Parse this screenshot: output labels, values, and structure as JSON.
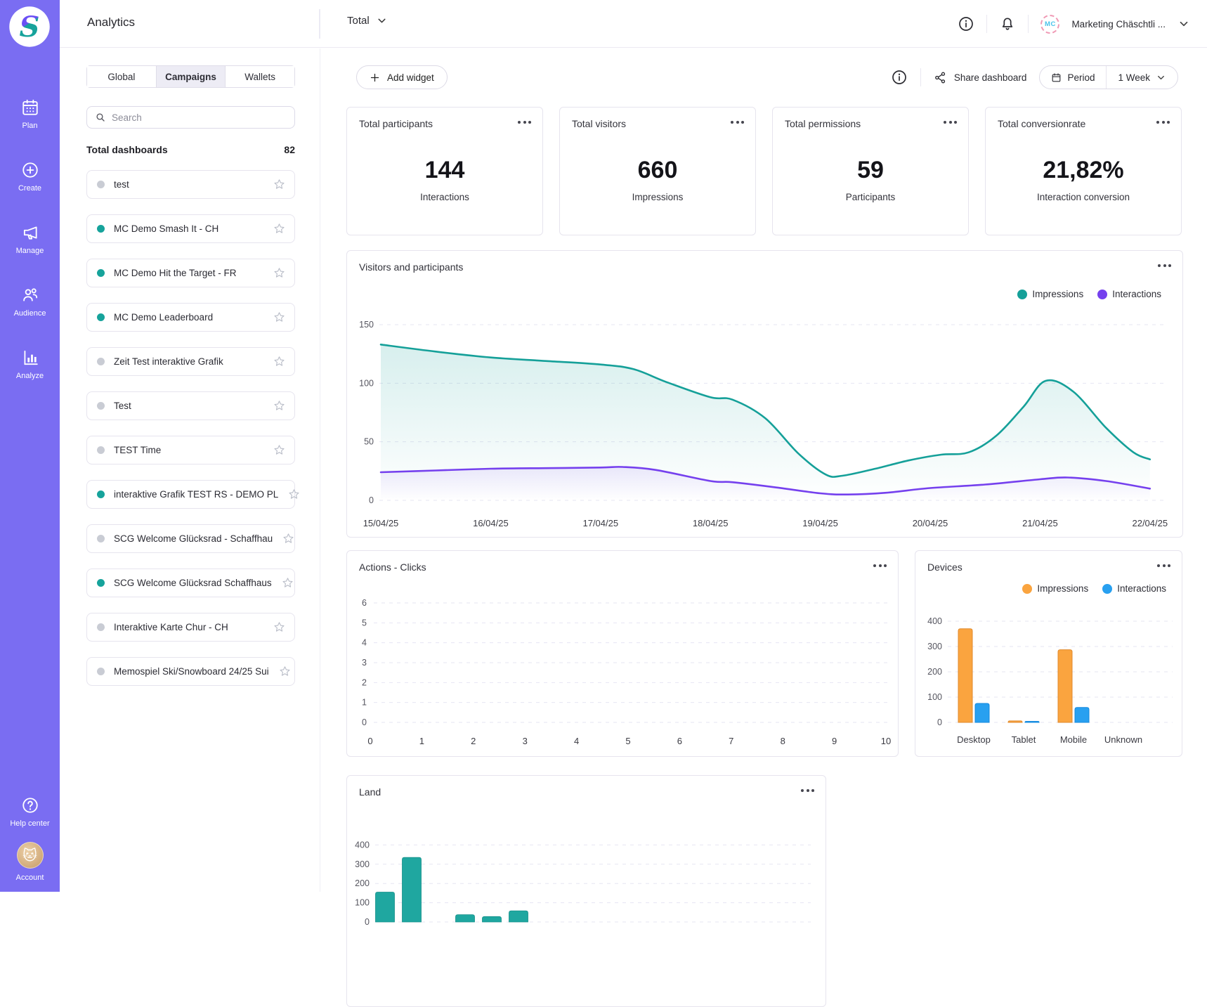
{
  "colors": {
    "sidebar": "#7a6df2",
    "teal": "#15a099",
    "purple": "#7540ee",
    "orange": "#faa43f",
    "blue": "#28a0f0",
    "dot_gray": "#c9ccd4",
    "dot_teal": "#16a39b"
  },
  "header": {
    "title": "Analytics",
    "scope_dropdown": "Total",
    "account_name": "Marketing Chäschtli ...",
    "avatar_initials": "MC"
  },
  "sidebar": {
    "items": [
      {
        "label": "Plan",
        "icon": "calendar-icon"
      },
      {
        "label": "Create",
        "icon": "plus-circle-icon"
      },
      {
        "label": "Manage",
        "icon": "megaphone-icon"
      },
      {
        "label": "Audience",
        "icon": "people-icon"
      },
      {
        "label": "Analyze",
        "icon": "bar-chart-icon"
      }
    ],
    "bottom": [
      {
        "label": "Help center",
        "icon": "question-circle-icon"
      },
      {
        "label": "Account",
        "icon": "avatar-cat"
      }
    ]
  },
  "panel": {
    "tabs": [
      "Global",
      "Campaigns",
      "Wallets"
    ],
    "active_tab": "Campaigns",
    "search_placeholder": "Search",
    "total_label": "Total dashboards",
    "total_count": "82",
    "dashboards": [
      {
        "name": "test",
        "dot": "gray"
      },
      {
        "name": "MC Demo Smash It - CH",
        "dot": "teal"
      },
      {
        "name": "MC Demo Hit the Target - FR",
        "dot": "teal"
      },
      {
        "name": "MC Demo Leaderboard",
        "dot": "teal"
      },
      {
        "name": "Zeit Test interaktive Grafik",
        "dot": "gray"
      },
      {
        "name": "Test",
        "dot": "gray"
      },
      {
        "name": "TEST Time",
        "dot": "gray"
      },
      {
        "name": "interaktive Grafik TEST RS - DEMO PL",
        "dot": "teal"
      },
      {
        "name": "SCG Welcome Glücksrad - Schaffhau",
        "dot": "gray"
      },
      {
        "name": "SCG Welcome Glücksrad Schaffhaus",
        "dot": "teal"
      },
      {
        "name": "Interaktive Karte Chur - CH",
        "dot": "gray"
      },
      {
        "name": "Memospiel Ski/Snowboard 24/25 Sui",
        "dot": "gray"
      }
    ]
  },
  "toolbar": {
    "add_widget": "Add widget",
    "share": "Share dashboard",
    "period_label": "Period",
    "period_value": "1 Week"
  },
  "kpis": [
    {
      "title": "Total participants",
      "value": "144",
      "label": "Interactions"
    },
    {
      "title": "Total visitors",
      "value": "660",
      "label": "Impressions"
    },
    {
      "title": "Total permissions",
      "value": "59",
      "label": "Participants"
    },
    {
      "title": "Total conversionrate",
      "value": "21,82%",
      "label": "Interaction conversion"
    }
  ],
  "chart_data": [
    {
      "id": "visitors",
      "type": "area",
      "title": "Visitors and participants",
      "legend_position": "top-right",
      "grid": "horizontal-dashed",
      "x_labels": [
        "15/04/25",
        "16/04/25",
        "17/04/25",
        "18/04/25",
        "19/04/25",
        "20/04/25",
        "21/04/25",
        "22/04/25"
      ],
      "ylim": [
        0,
        150
      ],
      "yticks": [
        0,
        50,
        100,
        150
      ],
      "series": [
        {
          "name": "Impressions",
          "color": "#15a099",
          "points": [
            [
              0,
              133
            ],
            [
              0.5,
              127
            ],
            [
              1,
              122
            ],
            [
              1.5,
              119
            ],
            [
              2,
              116
            ],
            [
              2.3,
              112
            ],
            [
              2.6,
              101
            ],
            [
              3,
              88
            ],
            [
              3.2,
              86
            ],
            [
              3.5,
              70
            ],
            [
              3.8,
              40
            ],
            [
              4.05,
              22
            ],
            [
              4.2,
              21
            ],
            [
              4.5,
              27
            ],
            [
              4.8,
              34
            ],
            [
              5.1,
              39
            ],
            [
              5.35,
              41
            ],
            [
              5.6,
              55
            ],
            [
              5.85,
              80
            ],
            [
              6.05,
              102
            ],
            [
              6.3,
              93
            ],
            [
              6.6,
              62
            ],
            [
              6.85,
              41
            ],
            [
              7,
              35
            ]
          ],
          "values_at_dates": [
            133,
            122,
            116,
            88,
            22,
            39,
            100,
            35
          ]
        },
        {
          "name": "Interactions",
          "color": "#7540ee",
          "points": [
            [
              0,
              24
            ],
            [
              0.5,
              25.5
            ],
            [
              1,
              27
            ],
            [
              1.5,
              27.5
            ],
            [
              2,
              28
            ],
            [
              2.2,
              28.5
            ],
            [
              2.5,
              26
            ],
            [
              3,
              16.5
            ],
            [
              3.2,
              15.5
            ],
            [
              3.6,
              11
            ],
            [
              4,
              6
            ],
            [
              4.25,
              5
            ],
            [
              4.6,
              6.5
            ],
            [
              5,
              10.5
            ],
            [
              5.5,
              13.5
            ],
            [
              6,
              18
            ],
            [
              6.25,
              19.5
            ],
            [
              6.6,
              16.5
            ],
            [
              7,
              10
            ]
          ],
          "values_at_dates": [
            24,
            27,
            28,
            16.5,
            6,
            10.5,
            18,
            10
          ]
        }
      ]
    },
    {
      "id": "actions",
      "type": "line",
      "title": "Actions - Clicks",
      "grid": "horizontal-dashed",
      "yticks": [
        0,
        1,
        2,
        3,
        4,
        5,
        6
      ],
      "xticks": [
        0,
        1,
        2,
        3,
        4,
        5,
        6,
        7,
        8,
        9,
        10
      ],
      "series": []
    },
    {
      "id": "devices",
      "type": "bar",
      "title": "Devices",
      "categories": [
        "Desktop",
        "Tablet",
        "Mobile",
        "Unknown"
      ],
      "ylim": [
        0,
        400
      ],
      "yticks": [
        0,
        100,
        200,
        300,
        400
      ],
      "series": [
        {
          "name": "Impressions",
          "color": "#faa43f",
          "values": [
            370,
            6,
            287,
            0
          ]
        },
        {
          "name": "Interactions",
          "color": "#28a0f0",
          "values": [
            75,
            4,
            59,
            0
          ]
        }
      ]
    },
    {
      "id": "land",
      "type": "bar",
      "title": "Land",
      "categories": [
        "",
        "",
        "",
        "",
        "",
        ""
      ],
      "ylim": [
        0,
        400
      ],
      "yticks": [
        0,
        100,
        200,
        300,
        400
      ],
      "series": [
        {
          "name": "Land",
          "color": "#1fa7a0",
          "values": [
            155,
            335,
            0,
            38,
            28,
            58
          ]
        }
      ]
    }
  ]
}
